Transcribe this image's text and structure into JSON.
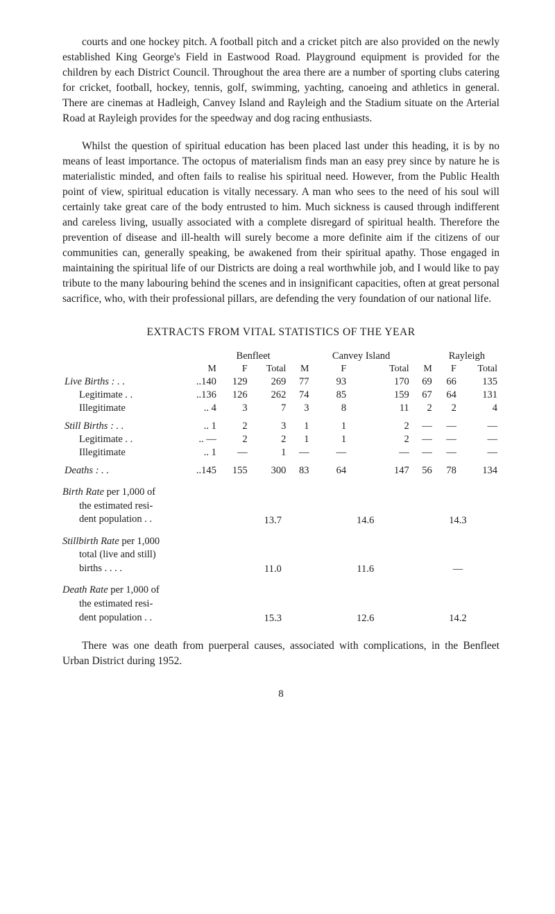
{
  "para1": "courts and one hockey pitch. A football pitch and a cricket pitch are also provided on the newly established King George's Field in Eastwood Road. Playground equipment is provided for the children by each District Council. Throughout the area there are a number of sporting clubs catering for cricket, football, hockey, tennis, golf, swimming, yachting, canoeing and athletics in general. There are cinemas at Hadleigh, Canvey Island and Rayleigh and the Stadium situate on the Arterial Road at Rayleigh provides for the speedway and dog racing enthusiasts.",
  "para2": "Whilst the question of spiritual education has been placed last under this heading, it is by no means of least importance. The octopus of materialism finds man an easy prey since by nature he is materialistic minded, and often fails to realise his spiritual need. However, from the Public Health point of view, spiritual education is vitally necessary. A man who sees to the need of his soul will certainly take great care of the body entrusted to him. Much sickness is caused through indifferent and careless living, usually associated with a complete disregard of spiritual health. Therefore the prevention of disease and ill-health will surely become a more definite aim if the citizens of our communities can, generally speaking, be awakened from their spiritual apathy. Those engaged in maintaining the spiritual life of our Districts are doing a real worthwhile job, and I would like to pay tribute to the many labouring behind the scenes and in insignificant capacities, often at great personal sacrifice, who, with their professional pillars, are defending the very foundation of our national life.",
  "sectionTitle": "EXTRACTS FROM VITAL STATISTICS OF THE YEAR",
  "table": {
    "groups": [
      "Benfleet",
      "Canvey Island",
      "Rayleigh"
    ],
    "subcols": [
      "M",
      "F",
      "Total",
      "M",
      "F",
      "Total",
      "M",
      "F",
      "Total"
    ],
    "rows": [
      {
        "label": "Live Births :  . .",
        "italic": true,
        "indent": false,
        "vals": [
          "..140",
          "129",
          "269",
          "77",
          "93",
          "170",
          "69",
          "66",
          "135"
        ]
      },
      {
        "label": "Legitimate . .",
        "italic": false,
        "indent": true,
        "vals": [
          "..136",
          "126",
          "262",
          "74",
          "85",
          "159",
          "67",
          "64",
          "131"
        ]
      },
      {
        "label": "Illegitimate",
        "italic": false,
        "indent": true,
        "vals": [
          ".. 4",
          "3",
          "7",
          "3",
          "8",
          "11",
          "2",
          "2",
          "4"
        ]
      },
      {
        "label": "Still Births :  . .",
        "italic": true,
        "indent": false,
        "spacer": true,
        "vals": [
          ".. 1",
          "2",
          "3",
          "1",
          "1",
          "2",
          "—",
          "—",
          "—"
        ]
      },
      {
        "label": "Legitimate . .",
        "italic": false,
        "indent": true,
        "vals": [
          ".. —",
          "2",
          "2",
          "1",
          "1",
          "2",
          "—",
          "—",
          "—"
        ]
      },
      {
        "label": "Illegitimate",
        "italic": false,
        "indent": true,
        "vals": [
          ".. 1",
          "—",
          "1",
          "—",
          "—",
          "—",
          "—",
          "—",
          "—"
        ]
      },
      {
        "label": "Deaths :       . .",
        "italic": true,
        "indent": false,
        "spacer": true,
        "vals": [
          "..145",
          "155",
          "300",
          "83",
          "64",
          "147",
          "56",
          "78",
          "134"
        ]
      }
    ]
  },
  "rates": [
    {
      "l1": "Birth Rate",
      "l1suffix": " per 1,000 of",
      "l2": "the estimated resi-",
      "l3": "dent population   . .",
      "vals": [
        "13.7",
        "14.6",
        "14.3"
      ]
    },
    {
      "l1": "Stillbirth Rate",
      "l1suffix": " per 1,000",
      "l2": "total (live and still)",
      "l3": "births       . .     . .",
      "vals": [
        "11.0",
        "11.6",
        "—"
      ]
    },
    {
      "l1": "Death Rate",
      "l1suffix": " per 1,000 of",
      "l2": "the estimated resi-",
      "l3": "dent population   . .",
      "vals": [
        "15.3",
        "12.6",
        "14.2"
      ]
    }
  ],
  "footerPara": "There was one death from puerperal causes, associated with complications, in the Benfleet Urban District during 1952.",
  "pageNum": "8"
}
